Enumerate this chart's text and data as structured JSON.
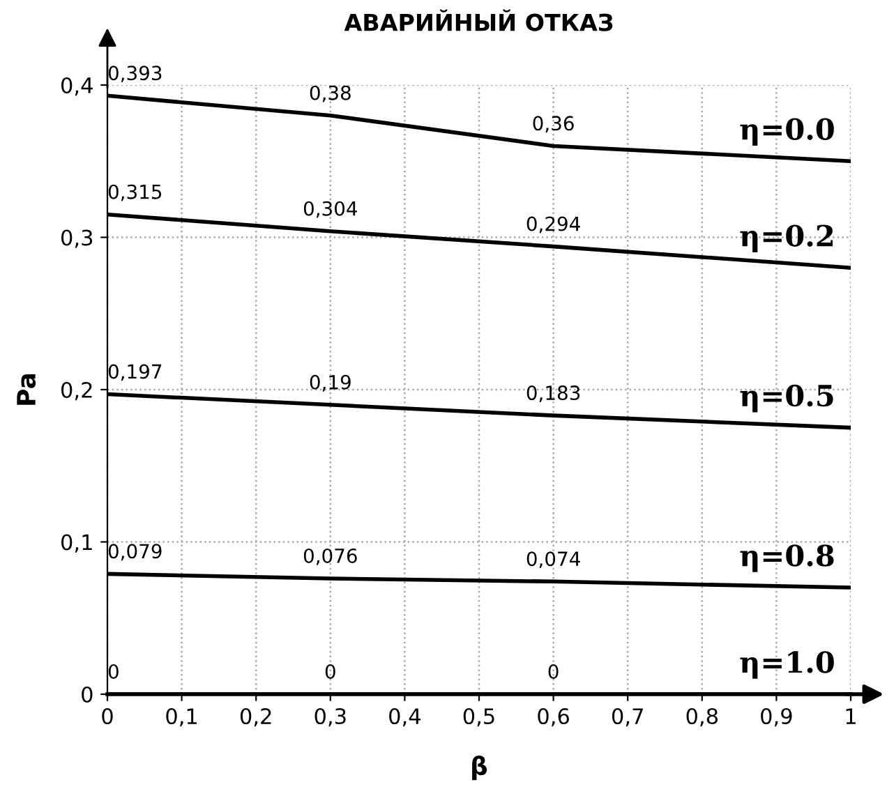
{
  "chart_data": {
    "type": "line",
    "title": "АВАРИЙНЫЙ ОТКАЗ",
    "xlabel": "β",
    "ylabel": "Pa",
    "x": [
      0,
      0.3,
      0.6,
      1
    ],
    "series": [
      {
        "name": "η=0.0",
        "color": "#000000",
        "values": [
          0.393,
          0.38,
          0.36,
          0.35
        ],
        "value_labels": [
          "0,393",
          "0,38",
          "0,36",
          null
        ]
      },
      {
        "name": "η=0.2",
        "color": "#000000",
        "values": [
          0.315,
          0.304,
          0.294,
          0.28
        ],
        "value_labels": [
          "0,315",
          "0,304",
          "0,294",
          null
        ]
      },
      {
        "name": "η=0.5",
        "color": "#000000",
        "values": [
          0.197,
          0.19,
          0.183,
          0.175
        ],
        "value_labels": [
          "0,197",
          "0,19",
          "0,183",
          null
        ]
      },
      {
        "name": "η=0.8",
        "color": "#000000",
        "values": [
          0.079,
          0.076,
          0.074,
          0.07
        ],
        "value_labels": [
          "0,079",
          "0,076",
          "0,074",
          null
        ]
      },
      {
        "name": "η=1.0",
        "color": "#000000",
        "values": [
          0,
          0,
          0,
          0
        ],
        "value_labels": [
          "0",
          "0",
          "0",
          null
        ]
      }
    ],
    "xlim": [
      0,
      1
    ],
    "ylim": [
      0,
      0.4
    ],
    "xticks": [
      0,
      {
        "value": 0.1,
        "label": "0,1"
      },
      {
        "value": 0.2,
        "label": "0,2"
      },
      {
        "value": 0.3,
        "label": "0,3"
      },
      {
        "value": 0.4,
        "label": "0,4"
      },
      {
        "value": 0.5,
        "label": "0,5"
      },
      {
        "value": 0.6,
        "label": "0,6"
      },
      {
        "value": 0.7,
        "label": "0,7"
      },
      {
        "value": 0.8,
        "label": "0,8"
      },
      {
        "value": 0.9,
        "label": "0,9"
      },
      1
    ],
    "yticks": [
      0,
      {
        "value": 0.1,
        "label": "0,1"
      },
      {
        "value": 0.2,
        "label": "0,2"
      },
      {
        "value": 0.3,
        "label": "0,3"
      },
      {
        "value": 0.4,
        "label": "0,4"
      }
    ],
    "grid": true,
    "legend": false,
    "marker": "none",
    "line_style": "solid"
  }
}
